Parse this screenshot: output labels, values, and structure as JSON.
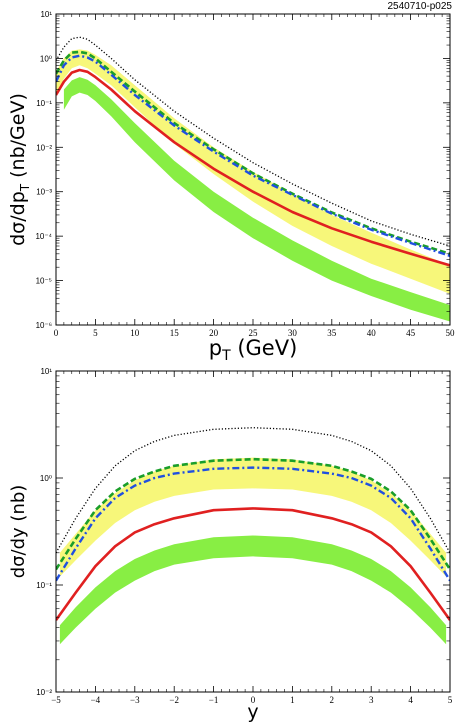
{
  "figure_id": "2540710-p025",
  "chart_data": [
    {
      "type": "line",
      "scale": {
        "x": "linear",
        "y": "log"
      },
      "xlim": [
        0,
        50
      ],
      "ylim": [
        1e-06,
        10
      ],
      "x_ticks": [
        "0",
        "5",
        "10",
        "15",
        "20",
        "25",
        "30",
        "35",
        "40",
        "45",
        "50"
      ],
      "y_ticks": [
        "10⁻⁶",
        "10⁻⁵",
        "10⁻⁴",
        "10⁻³",
        "10⁻²",
        "10⁻¹",
        "10⁰",
        "10¹"
      ],
      "xlabel": {
        "main": "p",
        "sub": "T",
        "rest": " (GeV)"
      },
      "ylabel": {
        "main": "dσ/dp",
        "sub": "T",
        "rest": " (nb/GeV)"
      },
      "bands": [
        {
          "color": "#f7f77a",
          "x": [
            0,
            1,
            2,
            3,
            4,
            5,
            7,
            10,
            15,
            20,
            25,
            30,
            35,
            40,
            45,
            50
          ],
          "upper": [
            0.5,
            1.0,
            1.5,
            1.6,
            1.5,
            1.2,
            0.7,
            0.25,
            0.045,
            0.01,
            0.0028,
            0.0009,
            0.0003,
            0.00012,
            5e-05,
            2.2e-05
          ],
          "lower": [
            0.15,
            0.35,
            0.6,
            0.7,
            0.6,
            0.45,
            0.25,
            0.08,
            0.012,
            0.0025,
            0.0006,
            0.00017,
            6e-05,
            2.4e-05,
            1.1e-05,
            5e-06
          ]
        },
        {
          "color": "#88ee44",
          "x": [
            1,
            2,
            3,
            4,
            5,
            7,
            10,
            15,
            20,
            25,
            30,
            35,
            40,
            45,
            50
          ],
          "upper": [
            0.2,
            0.32,
            0.38,
            0.33,
            0.25,
            0.12,
            0.035,
            0.005,
            0.001,
            0.00026,
            8e-05,
            2.8e-05,
            1.1e-05,
            5.5e-06,
            2.8e-06
          ],
          "lower": [
            0.07,
            0.14,
            0.17,
            0.15,
            0.11,
            0.05,
            0.013,
            0.0018,
            0.00035,
            9e-05,
            2.8e-05,
            1e-05,
            4.5e-06,
            2.2e-06,
            1.2e-06
          ]
        }
      ],
      "series": [
        {
          "style": "dotted",
          "color": "#000000",
          "x": [
            0,
            1,
            2,
            3,
            4,
            5,
            7,
            10,
            15,
            20,
            25,
            30,
            35,
            40,
            45,
            50
          ],
          "y": [
            0.9,
            1.8,
            2.8,
            3.0,
            2.7,
            2.0,
            1.0,
            0.33,
            0.065,
            0.016,
            0.0045,
            0.0015,
            0.00055,
            0.00022,
            0.00011,
            6e-05
          ]
        },
        {
          "style": "dashed",
          "color": "#1a9e2a",
          "x": [
            0,
            1,
            2,
            3,
            4,
            5,
            7,
            10,
            15,
            20,
            25,
            30,
            35,
            40,
            45,
            50
          ],
          "y": [
            0.45,
            0.9,
            1.35,
            1.4,
            1.3,
            1.0,
            0.5,
            0.18,
            0.035,
            0.009,
            0.0026,
            0.0009,
            0.00034,
            0.00015,
            7.5e-05,
            4e-05
          ]
        },
        {
          "style": "dashdot",
          "color": "#2050e0",
          "x": [
            0,
            1,
            2,
            3,
            4,
            5,
            7,
            10,
            15,
            20,
            25,
            30,
            35,
            40,
            45,
            50
          ],
          "y": [
            0.3,
            0.7,
            1.05,
            1.15,
            1.05,
            0.85,
            0.43,
            0.15,
            0.031,
            0.008,
            0.0023,
            0.00085,
            0.00032,
            0.00014,
            7e-05,
            3.6e-05
          ]
        },
        {
          "style": "solid",
          "color": "#e02020",
          "x": [
            0,
            1,
            2,
            3,
            4,
            5,
            7,
            10,
            15,
            20,
            25,
            30,
            35,
            40,
            45,
            50
          ],
          "y": [
            0.15,
            0.3,
            0.48,
            0.55,
            0.5,
            0.38,
            0.2,
            0.065,
            0.013,
            0.0033,
            0.001,
            0.00035,
            0.00015,
            7.5e-05,
            4e-05,
            2.2e-05
          ]
        }
      ]
    },
    {
      "type": "line",
      "scale": {
        "x": "linear",
        "y": "log"
      },
      "xlim": [
        -5,
        5
      ],
      "ylim": [
        0.01,
        10
      ],
      "x_ticks": [
        "−5",
        "−4",
        "−3",
        "−2",
        "−1",
        "0",
        "1",
        "2",
        "3",
        "4",
        "5"
      ],
      "y_ticks": [
        "10⁻²",
        "10⁻¹",
        "10⁰",
        "10¹"
      ],
      "xlabel": {
        "main": "y",
        "sub": "",
        "rest": ""
      },
      "ylabel": {
        "main": "dσ/dy (nb)",
        "sub": "",
        "rest": ""
      },
      "bands": [
        {
          "color": "#f7f77a",
          "x": [
            -4.9,
            -4.5,
            -4,
            -3.5,
            -3,
            -2.5,
            -2,
            -1,
            0,
            1,
            2,
            2.5,
            3,
            3.5,
            4,
            4.5,
            4.9
          ],
          "upper": [
            0.2,
            0.3,
            0.5,
            0.72,
            0.95,
            1.15,
            1.3,
            1.5,
            1.55,
            1.5,
            1.3,
            1.15,
            0.95,
            0.72,
            0.5,
            0.3,
            0.2
          ],
          "lower": [
            0.12,
            0.17,
            0.26,
            0.38,
            0.5,
            0.6,
            0.68,
            0.78,
            0.8,
            0.78,
            0.68,
            0.6,
            0.5,
            0.38,
            0.26,
            0.17,
            0.12
          ]
        },
        {
          "color": "#88ee44",
          "x": [
            -4.9,
            -4.5,
            -4,
            -3.5,
            -3,
            -2.5,
            -2,
            -1,
            0,
            1,
            2,
            2.5,
            3,
            3.5,
            4,
            4.5,
            4.9
          ],
          "upper": [
            0.042,
            0.062,
            0.095,
            0.135,
            0.175,
            0.21,
            0.24,
            0.28,
            0.29,
            0.28,
            0.24,
            0.21,
            0.175,
            0.135,
            0.095,
            0.062,
            0.042
          ],
          "lower": [
            0.028,
            0.04,
            0.06,
            0.085,
            0.11,
            0.135,
            0.155,
            0.178,
            0.185,
            0.178,
            0.155,
            0.135,
            0.11,
            0.085,
            0.06,
            0.04,
            0.028
          ]
        }
      ],
      "series": [
        {
          "style": "dotted",
          "color": "#000000",
          "x": [
            -5,
            -4.5,
            -4,
            -3.5,
            -3,
            -2.5,
            -2,
            -1,
            0,
            1,
            2,
            2.5,
            3,
            3.5,
            4,
            4.5,
            5
          ],
          "y": [
            0.2,
            0.42,
            0.8,
            1.3,
            1.8,
            2.2,
            2.5,
            2.85,
            2.95,
            2.85,
            2.5,
            2.2,
            1.8,
            1.3,
            0.8,
            0.42,
            0.2
          ]
        },
        {
          "style": "dashed",
          "color": "#1a9e2a",
          "x": [
            -5,
            -4.5,
            -4,
            -3.5,
            -3,
            -2.5,
            -2,
            -1,
            0,
            1,
            2,
            2.5,
            3,
            3.5,
            4,
            4.5,
            5
          ],
          "y": [
            0.14,
            0.27,
            0.5,
            0.75,
            0.98,
            1.15,
            1.3,
            1.45,
            1.5,
            1.45,
            1.3,
            1.15,
            0.98,
            0.75,
            0.5,
            0.27,
            0.14
          ]
        },
        {
          "style": "dashdot",
          "color": "#2050e0",
          "x": [
            -5,
            -4.5,
            -4,
            -3.5,
            -3,
            -2.5,
            -2,
            -1,
            0,
            1,
            2,
            2.5,
            3,
            3.5,
            4,
            4.5,
            5
          ],
          "y": [
            0.11,
            0.22,
            0.42,
            0.65,
            0.85,
            1.0,
            1.1,
            1.22,
            1.25,
            1.22,
            1.1,
            1.0,
            0.85,
            0.65,
            0.42,
            0.22,
            0.11
          ]
        },
        {
          "style": "solid",
          "color": "#e02020",
          "x": [
            -5,
            -4.5,
            -4,
            -3.5,
            -3,
            -2.5,
            -2,
            -1,
            0,
            1,
            2,
            2.5,
            3,
            3.5,
            4,
            4.5,
            5
          ],
          "y": [
            0.047,
            0.085,
            0.15,
            0.23,
            0.31,
            0.37,
            0.42,
            0.5,
            0.52,
            0.5,
            0.42,
            0.37,
            0.31,
            0.23,
            0.15,
            0.085,
            0.047
          ]
        }
      ]
    }
  ]
}
